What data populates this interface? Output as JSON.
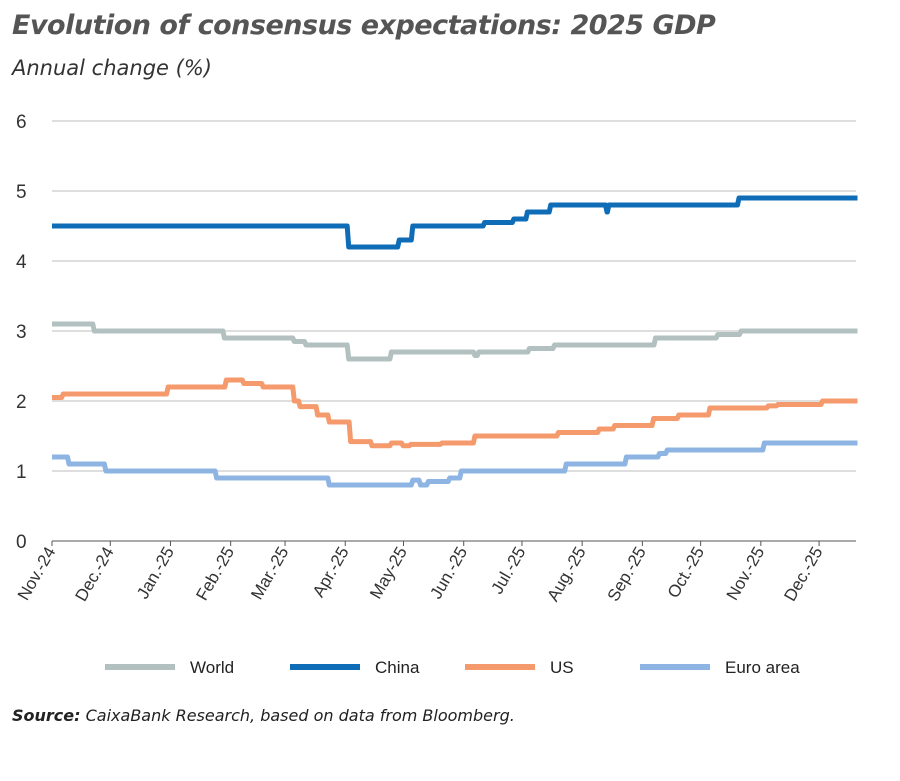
{
  "chart_data": {
    "type": "line",
    "title": "Evolution of consensus expectations: 2025 GDP",
    "subtitle": "Annual change (%)",
    "xlabel": "",
    "ylabel": "",
    "ylim": [
      0,
      6
    ],
    "yticks": [
      0,
      1,
      2,
      3,
      4,
      5,
      6
    ],
    "xlim": [
      "2024-11-01",
      "2025-12-20"
    ],
    "xticks": [
      {
        "date": "2024-11-01",
        "label": "Nov.-24"
      },
      {
        "date": "2024-12-01",
        "label": "Dec.-24"
      },
      {
        "date": "2025-01-01",
        "label": "Jan.-25"
      },
      {
        "date": "2025-02-01",
        "label": "Feb.-25"
      },
      {
        "date": "2025-03-01",
        "label": "Mar.-25"
      },
      {
        "date": "2025-04-01",
        "label": "Apr.-25"
      },
      {
        "date": "2025-05-01",
        "label": "May-25"
      },
      {
        "date": "2025-06-01",
        "label": "Jun.-25"
      },
      {
        "date": "2025-07-01",
        "label": "Jul.-25"
      },
      {
        "date": "2025-08-01",
        "label": "Aug.-25"
      },
      {
        "date": "2025-09-01",
        "label": "Sep.-25"
      },
      {
        "date": "2025-10-01",
        "label": "Oct.-25"
      },
      {
        "date": "2025-11-01",
        "label": "Nov.-25"
      },
      {
        "date": "2025-12-01",
        "label": "Dec.-25"
      }
    ],
    "grid": true,
    "legend_position": "bottom",
    "series": [
      {
        "name": "World",
        "color": "#b3c0c0",
        "points": [
          [
            "2024-11-01",
            3.1
          ],
          [
            "2024-11-22",
            3.0
          ],
          [
            "2025-01-28",
            2.9
          ],
          [
            "2025-03-05",
            2.85
          ],
          [
            "2025-03-11",
            2.8
          ],
          [
            "2025-04-02",
            2.6
          ],
          [
            "2025-04-24",
            2.7
          ],
          [
            "2025-06-06",
            2.65
          ],
          [
            "2025-06-08",
            2.7
          ],
          [
            "2025-07-04",
            2.75
          ],
          [
            "2025-07-17",
            2.8
          ],
          [
            "2025-09-07",
            2.9
          ],
          [
            "2025-10-09",
            2.95
          ],
          [
            "2025-10-21",
            3.0
          ],
          [
            "2025-12-20",
            3.0
          ]
        ]
      },
      {
        "name": "China",
        "color": "#0f6cb6",
        "points": [
          [
            "2024-11-01",
            4.5
          ],
          [
            "2025-04-02",
            4.2
          ],
          [
            "2025-04-28",
            4.3
          ],
          [
            "2025-05-05",
            4.5
          ],
          [
            "2025-06-11",
            4.55
          ],
          [
            "2025-06-26",
            4.6
          ],
          [
            "2025-07-03",
            4.7
          ],
          [
            "2025-07-15",
            4.8
          ],
          [
            "2025-08-13",
            4.7
          ],
          [
            "2025-08-14",
            4.8
          ],
          [
            "2025-10-20",
            4.9
          ],
          [
            "2025-12-20",
            4.9
          ]
        ]
      },
      {
        "name": "US",
        "color": "#f49a6c",
        "points": [
          [
            "2024-11-01",
            2.05
          ],
          [
            "2024-11-06",
            2.1
          ],
          [
            "2024-12-30",
            2.2
          ],
          [
            "2025-01-29",
            2.3
          ],
          [
            "2025-02-07",
            2.25
          ],
          [
            "2025-02-17",
            2.2
          ],
          [
            "2025-03-05",
            2.0
          ],
          [
            "2025-03-08",
            1.92
          ],
          [
            "2025-03-17",
            1.8
          ],
          [
            "2025-03-23",
            1.7
          ],
          [
            "2025-04-03",
            1.42
          ],
          [
            "2025-04-14",
            1.36
          ],
          [
            "2025-04-24",
            1.4
          ],
          [
            "2025-04-30",
            1.36
          ],
          [
            "2025-05-04",
            1.38
          ],
          [
            "2025-05-20",
            1.4
          ],
          [
            "2025-06-06",
            1.5
          ],
          [
            "2025-07-19",
            1.55
          ],
          [
            "2025-08-09",
            1.6
          ],
          [
            "2025-08-17",
            1.65
          ],
          [
            "2025-09-06",
            1.75
          ],
          [
            "2025-09-19",
            1.8
          ],
          [
            "2025-10-05",
            1.9
          ],
          [
            "2025-11-04",
            1.93
          ],
          [
            "2025-11-09",
            1.95
          ],
          [
            "2025-12-02",
            2.0
          ],
          [
            "2025-12-20",
            2.0
          ]
        ]
      },
      {
        "name": "Euro area",
        "color": "#8db4e2",
        "points": [
          [
            "2024-11-01",
            1.2
          ],
          [
            "2024-11-09",
            1.1
          ],
          [
            "2024-11-28",
            1.0
          ],
          [
            "2025-01-24",
            0.9
          ],
          [
            "2025-03-23",
            0.8
          ],
          [
            "2025-05-05",
            0.87
          ],
          [
            "2025-05-09",
            0.8
          ],
          [
            "2025-05-13",
            0.85
          ],
          [
            "2025-05-24",
            0.9
          ],
          [
            "2025-05-30",
            1.0
          ],
          [
            "2025-07-23",
            1.1
          ],
          [
            "2025-08-23",
            1.2
          ],
          [
            "2025-09-09",
            1.25
          ],
          [
            "2025-09-13",
            1.3
          ],
          [
            "2025-11-02",
            1.4
          ],
          [
            "2025-12-20",
            1.4
          ]
        ]
      }
    ]
  },
  "source": {
    "label": "Source:",
    "text": " CaixaBank Research, based on data from Bloomberg."
  }
}
